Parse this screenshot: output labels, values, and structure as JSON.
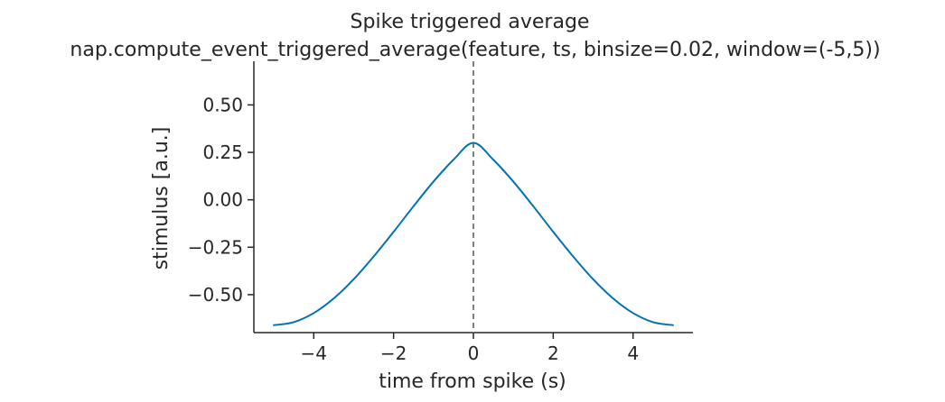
{
  "chart_data": {
    "type": "line",
    "title": "Spike triggered average",
    "subtitle": "nap.compute_event_triggered_average(feature, ts, binsize=0.02, window=(-5,5))",
    "xlabel": "time from spike (s)",
    "ylabel": "stimulus [a.u.]",
    "xlim": [
      -5.5,
      5.5
    ],
    "ylim": [
      -0.7,
      0.73
    ],
    "xticks": [
      -4,
      -2,
      0,
      2,
      4
    ],
    "xtick_labels": [
      "−4",
      "−2",
      "0",
      "2",
      "4"
    ],
    "yticks": [
      0.5,
      0.25,
      0.0,
      -0.25,
      -0.5
    ],
    "ytick_labels": [
      "0.50",
      "0.25",
      "0.00",
      "−0.25",
      "−0.50"
    ],
    "grid": false,
    "vline": {
      "x": 0,
      "style": "dashed",
      "color": "#808080"
    },
    "series": [
      {
        "color": "#0072b2",
        "x": [
          -5.0,
          -4.5,
          -4.0,
          -3.5,
          -3.0,
          -2.5,
          -2.0,
          -1.5,
          -1.0,
          -0.5,
          0.0,
          0.5,
          1.0,
          1.5,
          2.0,
          2.5,
          3.0,
          3.5,
          4.0,
          4.5,
          5.0
        ],
        "y": [
          -0.661,
          -0.645,
          -0.597,
          -0.52,
          -0.419,
          -0.299,
          -0.169,
          -0.034,
          0.096,
          0.211,
          0.3,
          0.211,
          0.096,
          -0.034,
          -0.169,
          -0.299,
          -0.419,
          -0.52,
          -0.597,
          -0.645,
          -0.661
        ]
      }
    ]
  }
}
